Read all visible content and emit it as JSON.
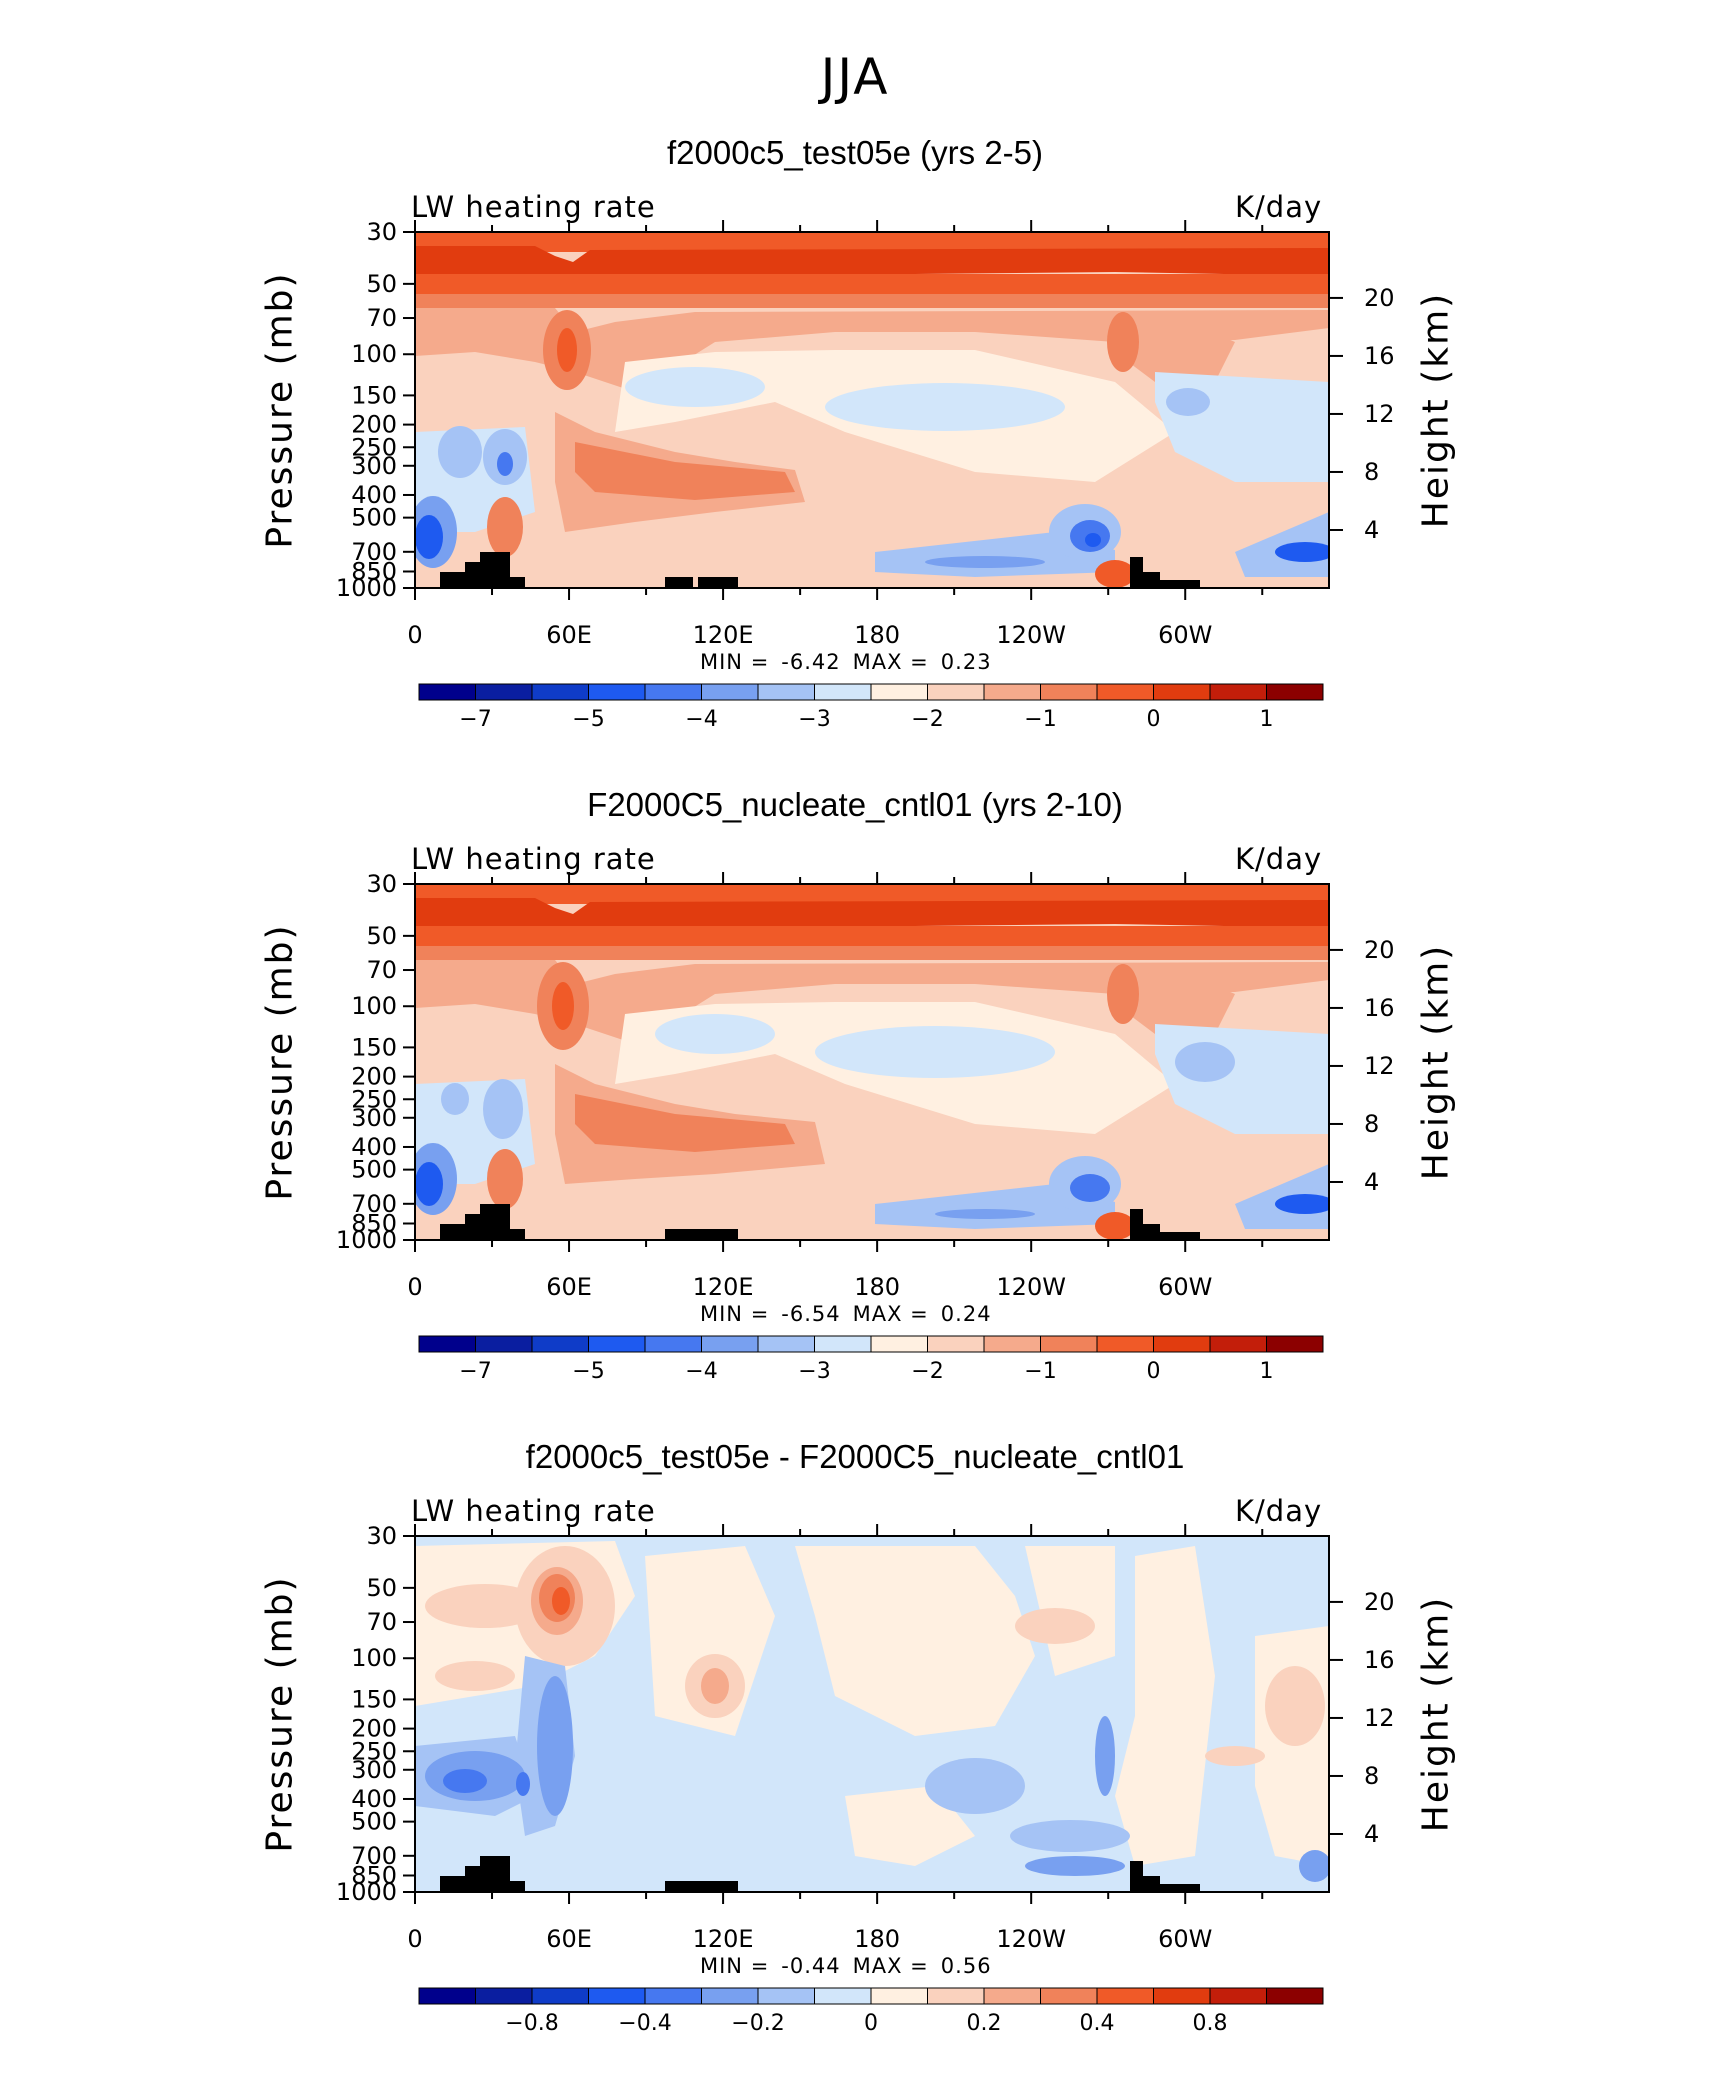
{
  "title": "JJA",
  "panels": [
    {
      "title": "f2000c5_test05e (yrs 2-5)",
      "var_name": "LW heating rate",
      "units": "K/day",
      "ylabel_left": "Pressure (mb)",
      "ylabel_right": "Height (km)",
      "min_label": "MIN =",
      "min_value": "-6.42",
      "max_label": "MAX =",
      "max_value": "0.23"
    },
    {
      "title": "F2000C5_nucleate_cntl01 (yrs 2-10)",
      "var_name": "LW heating rate",
      "units": "K/day",
      "ylabel_left": "Pressure (mb)",
      "ylabel_right": "Height (km)",
      "min_label": "MIN =",
      "min_value": "-6.54",
      "max_label": "MAX =",
      "max_value": "0.24"
    },
    {
      "title": "f2000c5_test05e - F2000C5_nucleate_cntl01",
      "var_name": "LW heating rate",
      "units": "K/day",
      "ylabel_left": "Pressure (mb)",
      "ylabel_right": "Height (km)",
      "min_label": "MIN =",
      "min_value": "-0.44",
      "max_label": "MAX =",
      "max_value": "0.56"
    }
  ],
  "colors": [
    "#00008c",
    "#0a1ea0",
    "#0f3cc8",
    "#1e5af0",
    "#4678f0",
    "#78a0f0",
    "#a5c3f5",
    "#d2e6fa",
    "#fff0e1",
    "#fad2be",
    "#f5aa8c",
    "#f0825a",
    "#f05a28",
    "#e13c0f",
    "#c31e0a",
    "#8c0000"
  ],
  "chart_data": [
    {
      "type": "heatmap",
      "title": "f2000c5_test05e (yrs 2-5)",
      "xlabel": "",
      "ylabel": "Pressure (mb)",
      "ylabel_right": "Height (km)",
      "x_ticks": [
        "0",
        "60E",
        "120E",
        "180",
        "120W",
        "60W"
      ],
      "y_ticks": [
        "30",
        "50",
        "70",
        "100",
        "150",
        "200",
        "250",
        "300",
        "400",
        "500",
        "700",
        "850",
        "1000"
      ],
      "y_right_ticks": [
        "20",
        "16",
        "12",
        "8",
        "4"
      ],
      "ylim": [
        1000,
        30
      ],
      "colorbar_labels": [
        "-7",
        "-5",
        "-4",
        "-3",
        "-2",
        "-1",
        "0",
        "1"
      ],
      "min": -6.42,
      "max": 0.23
    },
    {
      "type": "heatmap",
      "title": "F2000C5_nucleate_cntl01 (yrs 2-10)",
      "xlabel": "",
      "ylabel": "Pressure (mb)",
      "ylabel_right": "Height (km)",
      "x_ticks": [
        "0",
        "60E",
        "120E",
        "180",
        "120W",
        "60W"
      ],
      "y_ticks": [
        "30",
        "50",
        "70",
        "100",
        "150",
        "200",
        "250",
        "300",
        "400",
        "500",
        "700",
        "850",
        "1000"
      ],
      "y_right_ticks": [
        "20",
        "16",
        "12",
        "8",
        "4"
      ],
      "ylim": [
        1000,
        30
      ],
      "colorbar_labels": [
        "-7",
        "-5",
        "-4",
        "-3",
        "-2",
        "-1",
        "0",
        "1"
      ],
      "min": -6.54,
      "max": 0.24
    },
    {
      "type": "heatmap",
      "title": "f2000c5_test05e - F2000C5_nucleate_cntl01",
      "xlabel": "",
      "ylabel": "Pressure (mb)",
      "ylabel_right": "Height (km)",
      "x_ticks": [
        "0",
        "60E",
        "120E",
        "180",
        "120W",
        "60W"
      ],
      "y_ticks": [
        "30",
        "50",
        "70",
        "100",
        "150",
        "200",
        "250",
        "300",
        "400",
        "500",
        "700",
        "850",
        "1000"
      ],
      "y_right_ticks": [
        "20",
        "16",
        "12",
        "8",
        "4"
      ],
      "ylim": [
        1000,
        30
      ],
      "colorbar_labels": [
        "-0.8",
        "-0.4",
        "-0.2",
        "0",
        "0.2",
        "0.4",
        "0.8"
      ],
      "min": -0.44,
      "max": 0.56
    }
  ]
}
